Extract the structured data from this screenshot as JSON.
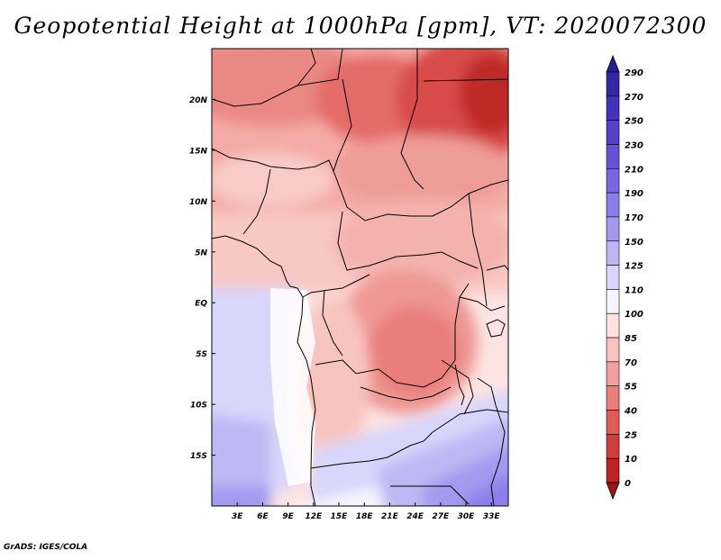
{
  "title": "Geopotential Height at 1000hPa [gpm], VT: 2020072300",
  "credit": "GrADS: IGES/COLA",
  "map": {
    "lon_range": [
      0,
      35
    ],
    "lat_range": [
      -20,
      25
    ],
    "lat_ticks": [
      {
        "value": 20,
        "label": "20N"
      },
      {
        "value": 15,
        "label": "15N"
      },
      {
        "value": 10,
        "label": "10N"
      },
      {
        "value": 5,
        "label": "5N"
      },
      {
        "value": 0,
        "label": "EQ"
      },
      {
        "value": -5,
        "label": "5S"
      },
      {
        "value": -10,
        "label": "10S"
      },
      {
        "value": -15,
        "label": "15S"
      }
    ],
    "lon_ticks": [
      {
        "value": 3,
        "label": "3E"
      },
      {
        "value": 6,
        "label": "6E"
      },
      {
        "value": 9,
        "label": "9E"
      },
      {
        "value": 12,
        "label": "12E"
      },
      {
        "value": 15,
        "label": "15E"
      },
      {
        "value": 18,
        "label": "18E"
      },
      {
        "value": 21,
        "label": "21E"
      },
      {
        "value": 24,
        "label": "24E"
      },
      {
        "value": 27,
        "label": "27E"
      },
      {
        "value": 30,
        "label": "30E"
      },
      {
        "value": 33,
        "label": "33E"
      }
    ]
  },
  "colorbar": {
    "labels": [
      "290",
      "270",
      "250",
      "230",
      "210",
      "190",
      "170",
      "150",
      "125",
      "110",
      "100",
      "85",
      "70",
      "55",
      "40",
      "25",
      "10",
      "0"
    ],
    "colors": [
      "#2a1a94",
      "#3526a8",
      "#4432bb",
      "#5440cc",
      "#6552d8",
      "#7866e2",
      "#8c7eea",
      "#a39af0",
      "#bdb8f4",
      "#d8d6fa",
      "#f5f4fd",
      "#fde2e2",
      "#f8c2c0",
      "#f2a09e",
      "#ea7e7c",
      "#e05a58",
      "#d23c3b",
      "#be2424",
      "#9c1414"
    ]
  }
}
